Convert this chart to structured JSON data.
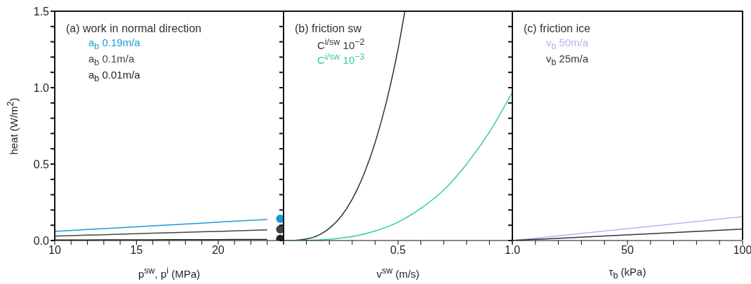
{
  "chart_data": [
    {
      "type": "line",
      "title": "(a) work in normal direction",
      "xlabel": "p$^{sw}$, p$^{i}$ (MPa)",
      "ylabel": "heat (W/m$^{2}$)",
      "xlim": [
        10,
        24
      ],
      "xticks": [
        10,
        {
          "value": 11,
          "label": null
        },
        {
          "value": 12,
          "label": null
        },
        {
          "value": 13,
          "label": null
        },
        {
          "value": 14,
          "label": null
        },
        15,
        {
          "value": 16,
          "label": null
        },
        {
          "value": 17,
          "label": null
        },
        {
          "value": 18,
          "label": null
        },
        {
          "value": 19,
          "label": null
        },
        20,
        {
          "value": 21,
          "label": null
        },
        {
          "value": 22,
          "label": null
        },
        {
          "value": 23,
          "label": null
        },
        {
          "value": 24,
          "label": null
        }
      ],
      "ylim": [
        0,
        1.5
      ],
      "yticks": [
        {
          "value": 0,
          "label": "0.0"
        },
        {
          "value": 0.1,
          "label": null
        },
        {
          "value": 0.2,
          "label": null
        },
        {
          "value": 0.3,
          "label": null
        },
        {
          "value": 0.4,
          "label": null
        },
        0.5,
        {
          "value": 0.6,
          "label": null
        },
        {
          "value": 0.7,
          "label": null
        },
        {
          "value": 0.8,
          "label": null
        },
        {
          "value": 0.9,
          "label": null
        },
        {
          "value": 1,
          "label": "1.0"
        },
        {
          "value": 1.1,
          "label": null
        },
        {
          "value": 1.2,
          "label": null
        },
        {
          "value": 1.3,
          "label": null
        },
        {
          "value": 1.4,
          "label": null
        },
        1.5
      ],
      "legend": "top left",
      "series": [
        {
          "name": "a$_{b}$ 0.19m/a",
          "color": "#1a9bd7",
          "x": [
            10,
            12,
            14,
            16,
            18,
            20,
            22,
            23
          ],
          "values": [
            0.06,
            0.072,
            0.084,
            0.096,
            0.108,
            0.12,
            0.132,
            0.138
          ]
        },
        {
          "name": "a$_{b}$ 0.1m/a",
          "color": "#444444",
          "x": [
            10,
            12,
            14,
            16,
            18,
            20,
            22,
            23
          ],
          "values": [
            0.029,
            0.035,
            0.041,
            0.048,
            0.054,
            0.06,
            0.066,
            0.07
          ]
        },
        {
          "name": "a$_{b}$ 0.01m/a",
          "color": "#222222",
          "x": [
            10,
            12,
            14,
            16,
            18,
            20,
            22,
            23
          ],
          "values": [
            0.004,
            0.004,
            0.005,
            0.005,
            0.006,
            0.006,
            0.007,
            0.007
          ]
        },
        {
          "type": "scatter",
          "marker": "circle",
          "color": "#1a9bd7",
          "x": [
            23.8
          ],
          "values": [
            0.142
          ]
        },
        {
          "type": "scatter",
          "marker": "circle",
          "color": "#444444",
          "x": [
            23.8
          ],
          "values": [
            0.073
          ]
        },
        {
          "type": "scatter",
          "marker": "circle",
          "color": "#222222",
          "x": [
            23.8
          ],
          "values": [
            0.01
          ]
        }
      ]
    },
    {
      "type": "line",
      "title": "(b) friction sw",
      "xlabel": "v$^{sw}$ (m/s)",
      "tick_labels": "x",
      "xlim": [
        0,
        1
      ],
      "xticks": [
        {
          "value": 0,
          "label": null
        },
        {
          "value": 0.1,
          "label": null
        },
        {
          "value": 0.2,
          "label": null
        },
        {
          "value": 0.3,
          "label": null
        },
        {
          "value": 0.4,
          "label": null
        },
        0.5,
        {
          "value": 0.6,
          "label": null
        },
        {
          "value": 0.7,
          "label": null
        },
        {
          "value": 0.8,
          "label": null
        },
        {
          "value": 0.9,
          "label": null
        },
        {
          "value": 1,
          "label": "1.0"
        }
      ],
      "ylim": [
        0,
        1.5
      ],
      "yticks": [
        {
          "value": 0,
          "label": null
        },
        {
          "value": 0.1,
          "label": null
        },
        {
          "value": 0.2,
          "label": null
        },
        {
          "value": 0.3,
          "label": null
        },
        {
          "value": 0.4,
          "label": null
        },
        {
          "value": 0.5,
          "label": null
        },
        {
          "value": 0.6,
          "label": null
        },
        {
          "value": 0.7,
          "label": null
        },
        {
          "value": 0.8,
          "label": null
        },
        {
          "value": 0.9,
          "label": null
        },
        {
          "value": 1,
          "label": null
        },
        {
          "value": 1.1,
          "label": null
        },
        {
          "value": 1.2,
          "label": null
        },
        {
          "value": 1.3,
          "label": null
        },
        {
          "value": 1.4,
          "label": null
        },
        {
          "value": 1.5,
          "label": null
        }
      ],
      "legend": "top left",
      "series": [
        {
          "name": "C$^{i/sw}$ 10$^{−2}$",
          "color": "#333333",
          "x": [
            0,
            0.05,
            0.1,
            0.15,
            0.2,
            0.25,
            0.3,
            0.35,
            0.4,
            0.45,
            0.5,
            0.53
          ],
          "values": [
            0,
            0.001,
            0.01,
            0.033,
            0.08,
            0.155,
            0.27,
            0.43,
            0.64,
            0.91,
            1.25,
            1.5
          ]
        },
        {
          "name": "C$^{i/sw}$ 10$^{−3}$",
          "color": "#2ecf96",
          "x": [
            0,
            0.1,
            0.2,
            0.3,
            0.4,
            0.5,
            0.6,
            0.7,
            0.8,
            0.9,
            1
          ],
          "values": [
            0,
            0.001,
            0.008,
            0.026,
            0.062,
            0.12,
            0.21,
            0.33,
            0.5,
            0.71,
            0.97
          ]
        }
      ]
    },
    {
      "type": "line",
      "title": "(c) friction ice",
      "xlabel": "τ$_{b}$ (kPa)",
      "tick_labels": "x",
      "xlim": [
        0,
        100
      ],
      "xticks": [
        {
          "value": 0,
          "label": null
        },
        {
          "value": 10,
          "label": null
        },
        {
          "value": 20,
          "label": null
        },
        {
          "value": 30,
          "label": null
        },
        {
          "value": 40,
          "label": null
        },
        50,
        {
          "value": 60,
          "label": null
        },
        {
          "value": 70,
          "label": null
        },
        {
          "value": 80,
          "label": null
        },
        {
          "value": 90,
          "label": null
        },
        100
      ],
      "ylim": [
        0,
        1.5
      ],
      "yticks": [
        {
          "value": 0,
          "label": null
        },
        {
          "value": 0.1,
          "label": null
        },
        {
          "value": 0.2,
          "label": null
        },
        {
          "value": 0.3,
          "label": null
        },
        {
          "value": 0.4,
          "label": null
        },
        {
          "value": 0.5,
          "label": null
        },
        {
          "value": 0.6,
          "label": null
        },
        {
          "value": 0.7,
          "label": null
        },
        {
          "value": 0.8,
          "label": null
        },
        {
          "value": 0.9,
          "label": null
        },
        {
          "value": 1,
          "label": null
        },
        {
          "value": 1.1,
          "label": null
        },
        {
          "value": 1.2,
          "label": null
        },
        {
          "value": 1.3,
          "label": null
        },
        {
          "value": 1.4,
          "label": null
        },
        {
          "value": 1.5,
          "label": null
        }
      ],
      "legend": "top left",
      "series": [
        {
          "name": "v$_{b}$ 50m/a",
          "color": "#b9b0f2",
          "x": [
            0,
            100
          ],
          "values": [
            0,
            0.156
          ]
        },
        {
          "name": "v$_{b}$ 25m/a",
          "color": "#333333",
          "x": [
            0,
            100
          ],
          "values": [
            0,
            0.075
          ]
        }
      ]
    }
  ]
}
